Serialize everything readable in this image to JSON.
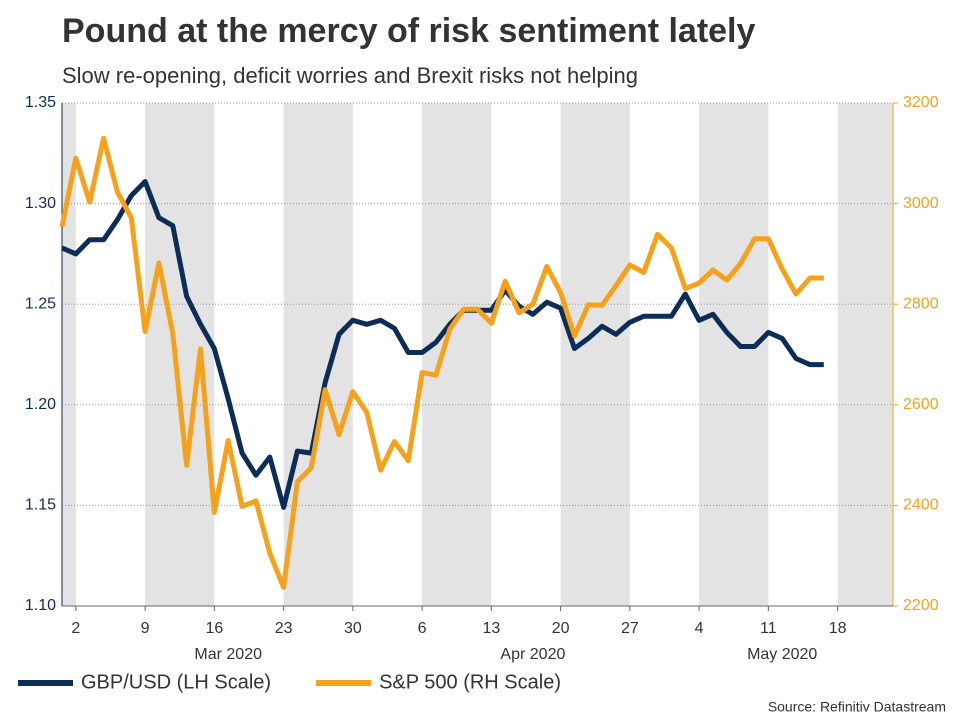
{
  "chart_data": {
    "type": "line",
    "title": "Pound at the mercy of risk sentiment lately",
    "subtitle": "Slow re-opening, deficit worries and Brexit risks not helping",
    "source": "Source: Refinitiv Datastream",
    "x": [
      "2020-02-28",
      "2020-03-02",
      "2020-03-03",
      "2020-03-04",
      "2020-03-05",
      "2020-03-06",
      "2020-03-09",
      "2020-03-10",
      "2020-03-11",
      "2020-03-12",
      "2020-03-13",
      "2020-03-16",
      "2020-03-17",
      "2020-03-18",
      "2020-03-19",
      "2020-03-20",
      "2020-03-23",
      "2020-03-24",
      "2020-03-25",
      "2020-03-26",
      "2020-03-27",
      "2020-03-30",
      "2020-03-31",
      "2020-04-01",
      "2020-04-02",
      "2020-04-03",
      "2020-04-06",
      "2020-04-07",
      "2020-04-08",
      "2020-04-09",
      "2020-04-10",
      "2020-04-13",
      "2020-04-14",
      "2020-04-15",
      "2020-04-16",
      "2020-04-17",
      "2020-04-20",
      "2020-04-21",
      "2020-04-22",
      "2020-04-23",
      "2020-04-24",
      "2020-04-27",
      "2020-04-28",
      "2020-04-29",
      "2020-04-30",
      "2020-05-01",
      "2020-05-04",
      "2020-05-05",
      "2020-05-06",
      "2020-05-07",
      "2020-05-08",
      "2020-05-11",
      "2020-05-12",
      "2020-05-13",
      "2020-05-14",
      "2020-05-15"
    ],
    "series": [
      {
        "name": "GBP/USD (LH Scale)",
        "color": "#0c2d57",
        "values": [
          1.278,
          1.275,
          1.282,
          1.282,
          1.292,
          1.304,
          1.311,
          1.293,
          1.289,
          1.254,
          1.24,
          1.228,
          1.203,
          1.176,
          1.165,
          1.174,
          1.149,
          1.177,
          1.176,
          1.211,
          1.235,
          1.242,
          1.24,
          1.242,
          1.238,
          1.226,
          1.226,
          1.231,
          1.24,
          1.247,
          1.247,
          1.247,
          1.257,
          1.249,
          1.245,
          1.251,
          1.248,
          1.228,
          1.233,
          1.239,
          1.235,
          1.241,
          1.244,
          1.244,
          1.244,
          1.255,
          1.242,
          1.245,
          1.236,
          1.229,
          1.229,
          1.236,
          1.233,
          1.223,
          1.22,
          1.22
        ]
      },
      {
        "name": "S&P 500 (RH Scale)",
        "color": "#f7a11a",
        "axis": "y2",
        "values": [
          2954,
          3090,
          3003,
          3130,
          3023,
          2972,
          2746,
          2882,
          2741,
          2480,
          2711,
          2386,
          2529,
          2398,
          2409,
          2305,
          2237,
          2447,
          2475,
          2630,
          2541,
          2626,
          2585,
          2470,
          2527,
          2489,
          2664,
          2659,
          2750,
          2790,
          2790,
          2762,
          2846,
          2783,
          2800,
          2875,
          2823,
          2737,
          2799,
          2798,
          2837,
          2878,
          2863,
          2939,
          2912,
          2831,
          2842,
          2868,
          2848,
          2881,
          2930,
          2930,
          2870,
          2820,
          2852,
          2852
        ]
      }
    ],
    "xlim": [
      "2020-02-28",
      "2020-05-22"
    ],
    "xticks": [
      {
        "value": "2020-03-02",
        "label": "2"
      },
      {
        "value": "2020-03-09",
        "label": "9"
      },
      {
        "value": "2020-03-16",
        "label": "16"
      },
      {
        "value": "2020-03-23",
        "label": "23"
      },
      {
        "value": "2020-03-30",
        "label": "30"
      },
      {
        "value": "2020-04-06",
        "label": "6"
      },
      {
        "value": "2020-04-13",
        "label": "13"
      },
      {
        "value": "2020-04-20",
        "label": "20"
      },
      {
        "value": "2020-04-27",
        "label": "27"
      },
      {
        "value": "2020-05-04",
        "label": "4"
      },
      {
        "value": "2020-05-11",
        "label": "11"
      },
      {
        "value": "2020-05-18",
        "label": "18"
      }
    ],
    "x_month_labels": [
      {
        "value": "2020-03-17",
        "label": "Mar 2020"
      },
      {
        "value": "2020-04-16",
        "label": "Apr 2020"
      },
      {
        "value": "2020-05-12",
        "label": "May 2020"
      }
    ],
    "ylim": [
      1.1,
      1.35
    ],
    "yticks": [
      {
        "value": 1.1,
        "label": "1.10"
      },
      {
        "value": 1.15,
        "label": "1.15"
      },
      {
        "value": 1.2,
        "label": "1.20"
      },
      {
        "value": 1.25,
        "label": "1.25"
      },
      {
        "value": 1.3,
        "label": "1.30"
      },
      {
        "value": 1.35,
        "label": "1.35"
      }
    ],
    "y2lim": [
      2200,
      3200
    ],
    "y2ticks": [
      2200,
      2400,
      2600,
      2800,
      3000,
      3200
    ],
    "grid": true
  }
}
